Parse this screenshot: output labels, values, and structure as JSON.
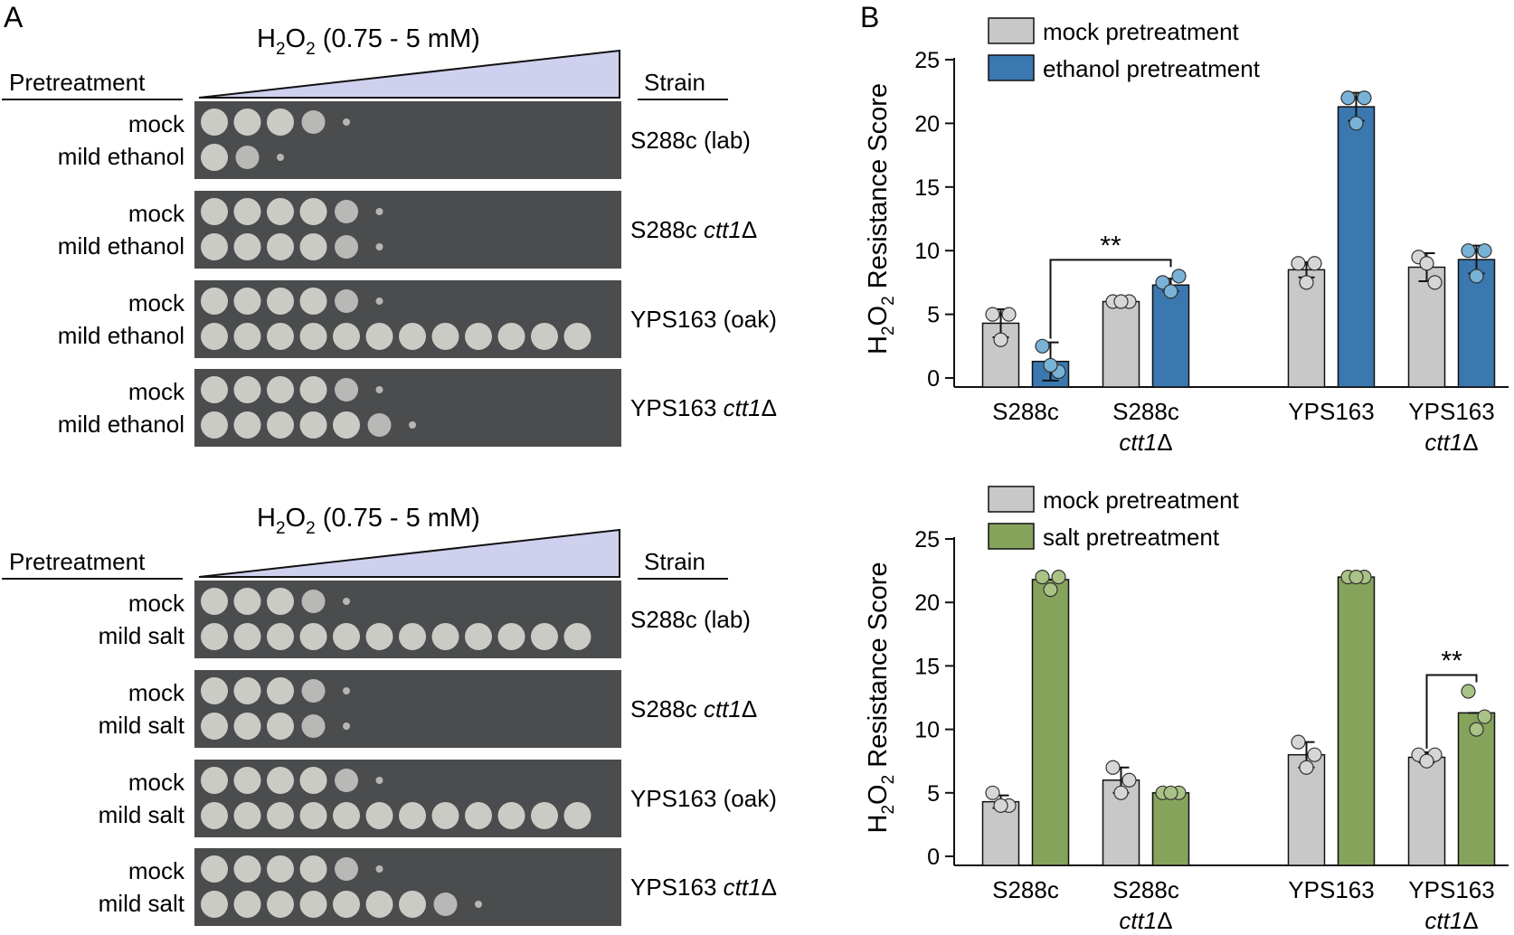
{
  "panel_a": {
    "label": "A",
    "groups": [
      {
        "title_chem": "H",
        "title_sub1": "2",
        "title_mid": "O",
        "title_sub2": "2",
        "title_rest": " (0.75 - 5 mM)",
        "pretreatment_header": "Pretreatment",
        "strain_header": "Strain",
        "plates": [
          {
            "rows": [
              "mock",
              "mild ethanol"
            ],
            "strain": "S288c (lab)",
            "strain_italic": "",
            "strain_suffix": "",
            "growth": [
              4,
              2
            ]
          },
          {
            "rows": [
              "mock",
              "mild ethanol"
            ],
            "strain": "S288c ",
            "strain_italic": "ctt1",
            "strain_suffix": "Δ",
            "growth": [
              5,
              5
            ]
          },
          {
            "rows": [
              "mock",
              "mild ethanol"
            ],
            "strain": "YPS163 (oak)",
            "strain_italic": "",
            "strain_suffix": "",
            "growth": [
              5,
              12
            ]
          },
          {
            "rows": [
              "mock",
              "mild ethanol"
            ],
            "strain": "YPS163 ",
            "strain_italic": "ctt1",
            "strain_suffix": "Δ",
            "growth": [
              5,
              6
            ]
          }
        ]
      },
      {
        "title_chem": "H",
        "title_sub1": "2",
        "title_mid": "O",
        "title_sub2": "2",
        "title_rest": " (0.75 - 5 mM)",
        "pretreatment_header": "Pretreatment",
        "strain_header": "Strain",
        "plates": [
          {
            "rows": [
              "mock",
              "mild salt"
            ],
            "strain": "S288c (lab)",
            "strain_italic": "",
            "strain_suffix": "",
            "growth": [
              4,
              12
            ]
          },
          {
            "rows": [
              "mock",
              "mild salt"
            ],
            "strain": "S288c ",
            "strain_italic": "ctt1",
            "strain_suffix": "Δ",
            "growth": [
              4,
              4
            ]
          },
          {
            "rows": [
              "mock",
              "mild salt"
            ],
            "strain": "YPS163 (oak)",
            "strain_italic": "",
            "strain_suffix": "",
            "growth": [
              5,
              12
            ]
          },
          {
            "rows": [
              "mock",
              "mild salt"
            ],
            "strain": "YPS163 ",
            "strain_italic": "ctt1",
            "strain_suffix": "Δ",
            "growth": [
              5,
              8
            ]
          }
        ]
      }
    ]
  },
  "chart_data": [
    {
      "type": "bar",
      "panel_label": "B",
      "ylabel_pre": "H",
      "ylabel_sub": "2",
      "ylabel_mid": "O",
      "ylabel_sub2": "2",
      "ylabel_rest": " Resistance Score",
      "ylim": [
        0,
        25
      ],
      "yticks": [
        0,
        5,
        10,
        15,
        20,
        25
      ],
      "legend_placement": "top",
      "categories": [
        {
          "line1": "S288c",
          "line2": ""
        },
        {
          "line1": "S288c",
          "line2": "ctt1Δ"
        },
        {
          "line1": "YPS163",
          "line2": ""
        },
        {
          "line1": "YPS163",
          "line2": "ctt1Δ"
        }
      ],
      "series": [
        {
          "name": "mock pretreatment",
          "color": "#c8c8c8",
          "dot": "#d6d6d6",
          "values": [
            4.3,
            6.0,
            8.5,
            8.7
          ],
          "errors": [
            1.1,
            0.0,
            0.6,
            1.1
          ],
          "points": [
            [
              5.0,
              5.0,
              3.0
            ],
            [
              6.0,
              6.0,
              6.0
            ],
            [
              9.0,
              9.0,
              7.5
            ],
            [
              9.5,
              7.5,
              9.0
            ]
          ]
        },
        {
          "name": "ethanol pretreatment",
          "color": "#3b78b0",
          "dot": "#78b2d6",
          "values": [
            1.3,
            7.3,
            21.3,
            9.3
          ],
          "errors": [
            1.5,
            0.5,
            1.1,
            1.1
          ],
          "points": [
            [
              2.5,
              0.5,
              1.0
            ],
            [
              7.5,
              8.0,
              6.8
            ],
            [
              22.0,
              22.0,
              20.0
            ],
            [
              10.0,
              10.0,
              8.0
            ]
          ]
        }
      ],
      "significance": {
        "label": "**",
        "from": [
          0,
          1
        ],
        "to": [
          1,
          1
        ]
      }
    },
    {
      "type": "bar",
      "panel_label": "",
      "ylabel_pre": "H",
      "ylabel_sub": "2",
      "ylabel_mid": "O",
      "ylabel_sub2": "2",
      "ylabel_rest": " Resistance Score",
      "ylim": [
        0,
        25
      ],
      "yticks": [
        0,
        5,
        10,
        15,
        20,
        25
      ],
      "legend_placement": "top",
      "categories": [
        {
          "line1": "S288c",
          "line2": ""
        },
        {
          "line1": "S288c",
          "line2": "ctt1Δ"
        },
        {
          "line1": "YPS163",
          "line2": ""
        },
        {
          "line1": "YPS163",
          "line2": "ctt1Δ"
        }
      ],
      "series": [
        {
          "name": "mock pretreatment",
          "color": "#c8c8c8",
          "dot": "#d6d6d6",
          "values": [
            4.3,
            6.0,
            8.0,
            7.8
          ],
          "errors": [
            0.5,
            1.0,
            1.0,
            0.4
          ],
          "points": [
            [
              5.0,
              4.0,
              4.0
            ],
            [
              7.0,
              6.0,
              5.0
            ],
            [
              9.0,
              8.0,
              7.0
            ],
            [
              8.0,
              8.0,
              7.5
            ]
          ]
        },
        {
          "name": "salt pretreatment",
          "color": "#86a35c",
          "dot": "#a9c285",
          "values": [
            21.8,
            5.0,
            22.0,
            11.3
          ],
          "errors": [
            0.0,
            0.0,
            0.0,
            0.0
          ],
          "points": [
            [
              22.0,
              22.0,
              21.0
            ],
            [
              5.0,
              5.0,
              5.0
            ],
            [
              22.0,
              22.0,
              22.0
            ],
            [
              13.0,
              11.0,
              10.0
            ]
          ]
        }
      ],
      "significance": {
        "label": "**",
        "from": [
          3,
          0
        ],
        "to": [
          3,
          1
        ]
      }
    }
  ]
}
